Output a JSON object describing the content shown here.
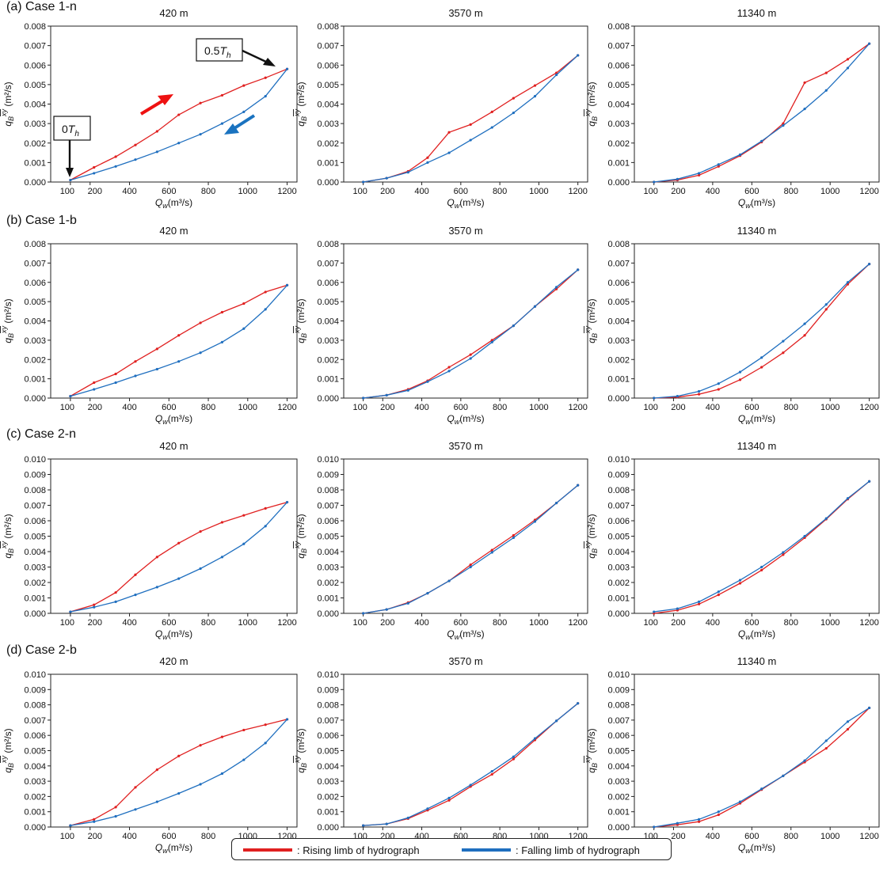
{
  "figure": {
    "case_labels": [
      "(a) Case 1-n",
      "(b) Case 1-b",
      "(c) Case 2-n",
      "(d) Case 2-b"
    ],
    "legend": {
      "rising_label": ": Rising limb of hydrograph",
      "falling_label": ": Falling limb of hydrograph",
      "rising_color": "#e02020",
      "falling_color": "#1f6fbf"
    },
    "annotations": {
      "peak_label": "0.5T_h",
      "start_label": "0T_h",
      "rising_arrow_color": "#ee1111",
      "falling_arrow_color": "#1a73c0"
    }
  },
  "chart_data": [
    {
      "id": "a1",
      "type": "line",
      "title": "420 m",
      "xlabel": "Q_w(m³/s)",
      "ylabel": "q_B^xy (m²/s)",
      "xlim": [
        0,
        1250
      ],
      "ylim": [
        0,
        0.008
      ],
      "xticks": [
        100,
        200,
        400,
        600,
        800,
        1000,
        1200
      ],
      "yticks": [
        0,
        0.001,
        0.002,
        0.003,
        0.004,
        0.005,
        0.006,
        0.007,
        0.008
      ],
      "x": [
        100,
        220,
        330,
        430,
        540,
        650,
        760,
        870,
        980,
        1090,
        1200
      ],
      "series": [
        {
          "values": [
            0.0001,
            0.00075,
            0.0013,
            0.0019,
            0.0026,
            0.00345,
            0.00405,
            0.00445,
            0.00495,
            0.00535,
            0.0058
          ]
        },
        {
          "values": [
            0.0001,
            0.00045,
            0.0008,
            0.00115,
            0.00155,
            0.002,
            0.00245,
            0.003,
            0.0036,
            0.0044,
            0.0058
          ]
        }
      ]
    },
    {
      "id": "a2",
      "type": "line",
      "title": "3570 m",
      "xlabel": "Q_w(m³/s)",
      "ylabel": "q_B^xy (m²/s)",
      "xlim": [
        0,
        1250
      ],
      "ylim": [
        0,
        0.008
      ],
      "xticks": [
        100,
        200,
        400,
        600,
        800,
        1000,
        1200
      ],
      "yticks": [
        0,
        0.001,
        0.002,
        0.003,
        0.004,
        0.005,
        0.006,
        0.007,
        0.008
      ],
      "x": [
        100,
        220,
        330,
        430,
        540,
        650,
        760,
        870,
        980,
        1090,
        1200
      ],
      "series": [
        {
          "values": [
            0.0,
            0.0002,
            0.00055,
            0.00125,
            0.00255,
            0.00295,
            0.0036,
            0.0043,
            0.00495,
            0.0056,
            0.0065
          ]
        },
        {
          "values": [
            0.0,
            0.0002,
            0.0005,
            0.001,
            0.0015,
            0.00215,
            0.0028,
            0.00355,
            0.0044,
            0.0055,
            0.0065
          ]
        }
      ]
    },
    {
      "id": "a3",
      "type": "line",
      "title": "11340 m",
      "xlabel": "Q_w(m³/s)",
      "ylabel": "q_B^xy (m²/s)",
      "xlim": [
        0,
        1250
      ],
      "ylim": [
        0,
        0.008
      ],
      "xticks": [
        100,
        200,
        400,
        600,
        800,
        1000,
        1200
      ],
      "yticks": [
        0,
        0.001,
        0.002,
        0.003,
        0.004,
        0.005,
        0.006,
        0.007,
        0.008
      ],
      "x": [
        100,
        220,
        330,
        430,
        540,
        650,
        760,
        870,
        980,
        1090,
        1200
      ],
      "series": [
        {
          "values": [
            0.0,
            0.0001,
            0.00035,
            0.0008,
            0.00135,
            0.00205,
            0.003,
            0.0051,
            0.0056,
            0.0063,
            0.0071
          ]
        },
        {
          "values": [
            0.0,
            0.00015,
            0.00045,
            0.0009,
            0.0014,
            0.0021,
            0.0029,
            0.00375,
            0.0047,
            0.00585,
            0.0071
          ]
        }
      ]
    },
    {
      "id": "b1",
      "type": "line",
      "title": "420 m",
      "xlabel": "Q_w(m³/s)",
      "ylabel": "q_B^xy (m²/s)",
      "xlim": [
        0,
        1250
      ],
      "ylim": [
        0,
        0.008
      ],
      "xticks": [
        100,
        200,
        400,
        600,
        800,
        1000,
        1200
      ],
      "yticks": [
        0,
        0.001,
        0.002,
        0.003,
        0.004,
        0.005,
        0.006,
        0.007,
        0.008
      ],
      "x": [
        100,
        220,
        330,
        430,
        540,
        650,
        760,
        870,
        980,
        1090,
        1200
      ],
      "series": [
        {
          "values": [
            0.0001,
            0.0008,
            0.00125,
            0.0019,
            0.00255,
            0.00325,
            0.0039,
            0.00445,
            0.0049,
            0.0055,
            0.00585
          ]
        },
        {
          "values": [
            0.0001,
            0.00045,
            0.0008,
            0.00115,
            0.0015,
            0.0019,
            0.00235,
            0.0029,
            0.0036,
            0.0046,
            0.00585
          ]
        }
      ]
    },
    {
      "id": "b2",
      "type": "line",
      "title": "3570 m",
      "xlabel": "Q_w(m³/s)",
      "ylabel": "q_B^xy (m²/s)",
      "xlim": [
        0,
        1250
      ],
      "ylim": [
        0,
        0.008
      ],
      "xticks": [
        100,
        200,
        400,
        600,
        800,
        1000,
        1200
      ],
      "yticks": [
        0,
        0.001,
        0.002,
        0.003,
        0.004,
        0.005,
        0.006,
        0.007,
        0.008
      ],
      "x": [
        100,
        220,
        330,
        430,
        540,
        650,
        760,
        870,
        980,
        1090,
        1200
      ],
      "series": [
        {
          "values": [
            0.0,
            0.00015,
            0.00045,
            0.0009,
            0.0016,
            0.00225,
            0.003,
            0.00375,
            0.00475,
            0.00565,
            0.00665
          ]
        },
        {
          "values": [
            0.0,
            0.00015,
            0.0004,
            0.00085,
            0.0014,
            0.00205,
            0.0029,
            0.00375,
            0.00475,
            0.00575,
            0.00665
          ]
        }
      ]
    },
    {
      "id": "b3",
      "type": "line",
      "title": "11340 m",
      "xlabel": "Q_w(m³/s)",
      "ylabel": "q_B^xy (m²/s)",
      "xlim": [
        0,
        1250
      ],
      "ylim": [
        0,
        0.008
      ],
      "xticks": [
        100,
        200,
        400,
        600,
        800,
        1000,
        1200
      ],
      "yticks": [
        0,
        0.001,
        0.002,
        0.003,
        0.004,
        0.005,
        0.006,
        0.007,
        0.008
      ],
      "x": [
        100,
        220,
        330,
        430,
        540,
        650,
        760,
        870,
        980,
        1090,
        1200
      ],
      "series": [
        {
          "values": [
            0.0,
            5e-05,
            0.0002,
            0.00045,
            0.00095,
            0.0016,
            0.00235,
            0.00325,
            0.0046,
            0.0059,
            0.00695
          ]
        },
        {
          "values": [
            0.0,
            0.0001,
            0.00035,
            0.00075,
            0.00135,
            0.0021,
            0.00295,
            0.00385,
            0.00485,
            0.006,
            0.00695
          ]
        }
      ]
    },
    {
      "id": "c1",
      "type": "line",
      "title": "420 m",
      "xlabel": "Q_w(m³/s)",
      "ylabel": "q_B^xy (m²/s)",
      "xlim": [
        0,
        1250
      ],
      "ylim": [
        0,
        0.01
      ],
      "xticks": [
        100,
        200,
        400,
        600,
        800,
        1000,
        1200
      ],
      "yticks": [
        0,
        0.001,
        0.002,
        0.003,
        0.004,
        0.005,
        0.006,
        0.007,
        0.008,
        0.009,
        0.01
      ],
      "x": [
        100,
        220,
        330,
        430,
        540,
        650,
        760,
        870,
        980,
        1090,
        1200
      ],
      "series": [
        {
          "values": [
            0.0001,
            0.00055,
            0.00135,
            0.0025,
            0.00365,
            0.00455,
            0.0053,
            0.0059,
            0.00635,
            0.0068,
            0.0072
          ]
        },
        {
          "values": [
            0.0001,
            0.0004,
            0.00075,
            0.0012,
            0.0017,
            0.00225,
            0.0029,
            0.00365,
            0.0045,
            0.00565,
            0.0072
          ]
        }
      ]
    },
    {
      "id": "c2",
      "type": "line",
      "title": "3570 m",
      "xlabel": "Q_w(m³/s)",
      "ylabel": "q_B^xy (m²/s)",
      "xlim": [
        0,
        1250
      ],
      "ylim": [
        0,
        0.01
      ],
      "xticks": [
        100,
        200,
        400,
        600,
        800,
        1000,
        1200
      ],
      "yticks": [
        0,
        0.001,
        0.002,
        0.003,
        0.004,
        0.005,
        0.006,
        0.007,
        0.008,
        0.009,
        0.01
      ],
      "x": [
        100,
        220,
        330,
        430,
        540,
        650,
        760,
        870,
        980,
        1090,
        1200
      ],
      "series": [
        {
          "values": [
            0.0,
            0.00025,
            0.0007,
            0.0013,
            0.0021,
            0.00315,
            0.0041,
            0.00505,
            0.00605,
            0.00715,
            0.0083
          ]
        },
        {
          "values": [
            0.0,
            0.00025,
            0.00065,
            0.0013,
            0.0021,
            0.003,
            0.00395,
            0.0049,
            0.00595,
            0.00715,
            0.0083
          ]
        }
      ]
    },
    {
      "id": "c3",
      "type": "line",
      "title": "11340 m",
      "xlabel": "Q_w(m³/s)",
      "ylabel": "q_B^xy (m²/s)",
      "xlim": [
        0,
        1250
      ],
      "ylim": [
        0,
        0.01
      ],
      "xticks": [
        100,
        200,
        400,
        600,
        800,
        1000,
        1200
      ],
      "yticks": [
        0,
        0.001,
        0.002,
        0.003,
        0.004,
        0.005,
        0.006,
        0.007,
        0.008,
        0.009,
        0.01
      ],
      "x": [
        100,
        220,
        330,
        430,
        540,
        650,
        760,
        870,
        980,
        1090,
        1200
      ],
      "series": [
        {
          "values": [
            0.0,
            0.0002,
            0.0006,
            0.0012,
            0.00195,
            0.0028,
            0.0038,
            0.0049,
            0.0061,
            0.0074,
            0.00855
          ]
        },
        {
          "values": [
            0.0001,
            0.0003,
            0.00075,
            0.0014,
            0.00215,
            0.003,
            0.00395,
            0.005,
            0.00615,
            0.00745,
            0.00855
          ]
        }
      ]
    },
    {
      "id": "d1",
      "type": "line",
      "title": "420 m",
      "xlabel": "Q_w(m³/s)",
      "ylabel": "q_B^xy (m²/s)",
      "xlim": [
        0,
        1250
      ],
      "ylim": [
        0,
        0.01
      ],
      "xticks": [
        100,
        200,
        400,
        600,
        800,
        1000,
        1200
      ],
      "yticks": [
        0,
        0.001,
        0.002,
        0.003,
        0.004,
        0.005,
        0.006,
        0.007,
        0.008,
        0.009,
        0.01
      ],
      "x": [
        100,
        220,
        330,
        430,
        540,
        650,
        760,
        870,
        980,
        1090,
        1200
      ],
      "series": [
        {
          "values": [
            0.0001,
            0.0005,
            0.0013,
            0.0026,
            0.00375,
            0.00465,
            0.00535,
            0.0059,
            0.00635,
            0.0067,
            0.00705
          ]
        },
        {
          "values": [
            0.0001,
            0.00035,
            0.0007,
            0.00115,
            0.00165,
            0.0022,
            0.0028,
            0.0035,
            0.0044,
            0.0055,
            0.00705
          ]
        }
      ]
    },
    {
      "id": "d2",
      "type": "line",
      "title": "3570 m",
      "xlabel": "Q_w(m³/s)",
      "ylabel": "q_B^xy (m²/s)",
      "xlim": [
        0,
        1250
      ],
      "ylim": [
        0,
        0.01
      ],
      "xticks": [
        100,
        200,
        400,
        600,
        800,
        1000,
        1200
      ],
      "yticks": [
        0,
        0.001,
        0.002,
        0.003,
        0.004,
        0.005,
        0.006,
        0.007,
        0.008,
        0.009,
        0.01
      ],
      "x": [
        100,
        220,
        330,
        430,
        540,
        650,
        760,
        870,
        980,
        1090,
        1200
      ],
      "series": [
        {
          "values": [
            0.0001,
            0.0002,
            0.00055,
            0.0011,
            0.00175,
            0.00265,
            0.00345,
            0.00445,
            0.0057,
            0.00695,
            0.0081
          ]
        },
        {
          "values": [
            0.0001,
            0.0002,
            0.0006,
            0.0012,
            0.0019,
            0.00275,
            0.00365,
            0.0046,
            0.0058,
            0.00695,
            0.0081
          ]
        }
      ]
    },
    {
      "id": "d3",
      "type": "line",
      "title": "11340 m",
      "xlabel": "Q_w(m³/s)",
      "ylabel": "q_B^xy (m²/s)",
      "xlim": [
        0,
        1250
      ],
      "ylim": [
        0,
        0.01
      ],
      "xticks": [
        100,
        200,
        400,
        600,
        800,
        1000,
        1200
      ],
      "yticks": [
        0,
        0.001,
        0.002,
        0.003,
        0.004,
        0.005,
        0.006,
        0.007,
        0.008,
        0.009,
        0.01
      ],
      "x": [
        100,
        220,
        330,
        430,
        540,
        650,
        760,
        870,
        980,
        1090,
        1200
      ],
      "series": [
        {
          "values": [
            0.0,
            0.00015,
            0.00035,
            0.0008,
            0.00155,
            0.00245,
            0.00335,
            0.00425,
            0.00515,
            0.0064,
            0.0078
          ]
        },
        {
          "values": [
            0.0,
            0.00025,
            0.0005,
            0.001,
            0.00165,
            0.0025,
            0.00335,
            0.00435,
            0.00565,
            0.0069,
            0.0078
          ]
        }
      ]
    }
  ]
}
